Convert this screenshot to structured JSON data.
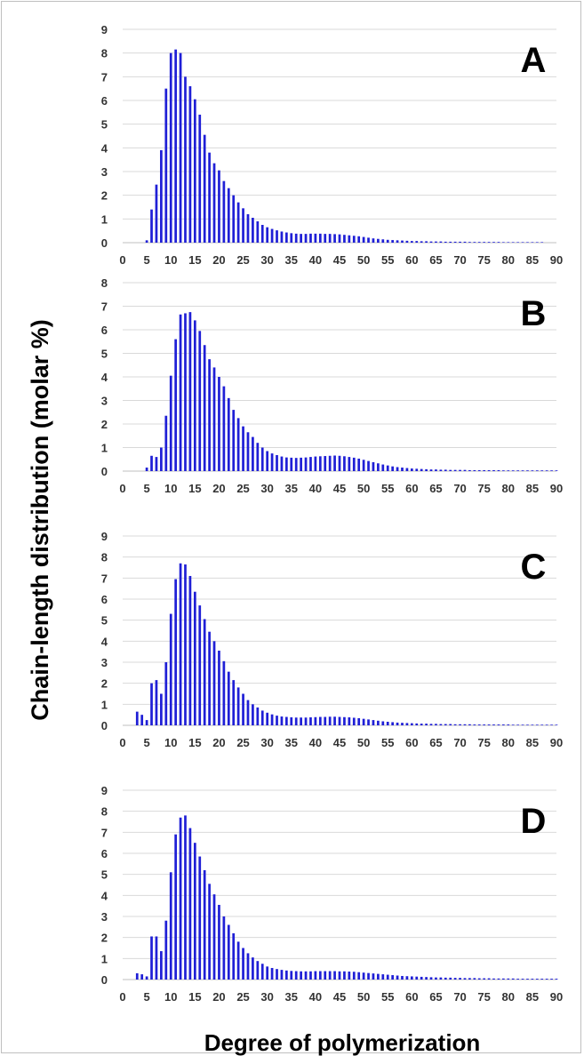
{
  "figure": {
    "ylabel": "Chain-length distribution  (molar %)",
    "xlabel": "Degree of polymerization"
  },
  "style": {
    "bar_color": "#1f1fd6",
    "grid_color": "#d9d9d9",
    "tick_color": "#333333"
  },
  "chart_data": [
    {
      "type": "bar",
      "panel_label": "A",
      "xlim": [
        0,
        90
      ],
      "ylim": [
        0,
        9
      ],
      "xticks": [
        0,
        5,
        10,
        15,
        20,
        25,
        30,
        35,
        40,
        45,
        50,
        55,
        60,
        65,
        70,
        75,
        80,
        85,
        90
      ],
      "yticks": [
        0,
        1,
        2,
        3,
        4,
        5,
        6,
        7,
        8,
        9
      ],
      "grid": true,
      "x": [
        5,
        6,
        7,
        8,
        9,
        10,
        11,
        12,
        13,
        14,
        15,
        16,
        17,
        18,
        19,
        20,
        21,
        22,
        23,
        24,
        25,
        26,
        27,
        28,
        29,
        30,
        31,
        32,
        33,
        34,
        35,
        36,
        37,
        38,
        39,
        40,
        41,
        42,
        43,
        44,
        45,
        46,
        47,
        48,
        49,
        50,
        51,
        52,
        53,
        54,
        55,
        56,
        57,
        58,
        59,
        60,
        61,
        62,
        63,
        64,
        65,
        66,
        67,
        68,
        69,
        70,
        71,
        72,
        73,
        74,
        75,
        76,
        77,
        78,
        79,
        80,
        81,
        82,
        83,
        84,
        85,
        86,
        87
      ],
      "values": [
        0.1,
        1.4,
        2.45,
        3.9,
        6.5,
        8.0,
        8.15,
        8.0,
        7.0,
        6.6,
        6.05,
        5.4,
        4.55,
        3.8,
        3.35,
        3.05,
        2.6,
        2.3,
        2.0,
        1.7,
        1.45,
        1.2,
        1.05,
        0.9,
        0.75,
        0.65,
        0.58,
        0.52,
        0.47,
        0.43,
        0.4,
        0.38,
        0.37,
        0.37,
        0.38,
        0.38,
        0.38,
        0.37,
        0.37,
        0.36,
        0.35,
        0.33,
        0.31,
        0.29,
        0.27,
        0.24,
        0.21,
        0.18,
        0.16,
        0.14,
        0.12,
        0.11,
        0.1,
        0.09,
        0.08,
        0.07,
        0.07,
        0.06,
        0.06,
        0.05,
        0.05,
        0.05,
        0.04,
        0.04,
        0.04,
        0.04,
        0.04,
        0.03,
        0.03,
        0.03,
        0.03,
        0.03,
        0.03,
        0.03,
        0.02,
        0.02,
        0.02,
        0.02,
        0.02,
        0.02,
        0.02,
        0.02,
        0.02
      ]
    },
    {
      "type": "bar",
      "panel_label": "B",
      "xlim": [
        0,
        90
      ],
      "ylim": [
        0,
        8
      ],
      "xticks": [
        0,
        5,
        10,
        15,
        20,
        25,
        30,
        35,
        40,
        45,
        50,
        55,
        60,
        65,
        70,
        75,
        80,
        85,
        90
      ],
      "yticks": [
        0,
        1,
        2,
        3,
        4,
        5,
        6,
        7,
        8
      ],
      "grid": true,
      "x": [
        5,
        6,
        7,
        8,
        9,
        10,
        11,
        12,
        13,
        14,
        15,
        16,
        17,
        18,
        19,
        20,
        21,
        22,
        23,
        24,
        25,
        26,
        27,
        28,
        29,
        30,
        31,
        32,
        33,
        34,
        35,
        36,
        37,
        38,
        39,
        40,
        41,
        42,
        43,
        44,
        45,
        46,
        47,
        48,
        49,
        50,
        51,
        52,
        53,
        54,
        55,
        56,
        57,
        58,
        59,
        60,
        61,
        62,
        63,
        64,
        65,
        66,
        67,
        68,
        69,
        70,
        71,
        72,
        73,
        74,
        75,
        76,
        77,
        78,
        79,
        80,
        81,
        82,
        83,
        84,
        85,
        86,
        87,
        88,
        89,
        90
      ],
      "values": [
        0.15,
        0.65,
        0.6,
        1.0,
        2.35,
        4.05,
        5.6,
        6.65,
        6.7,
        6.75,
        6.4,
        5.95,
        5.35,
        4.75,
        4.4,
        4.0,
        3.6,
        3.1,
        2.6,
        2.25,
        1.9,
        1.65,
        1.45,
        1.2,
        1.0,
        0.85,
        0.75,
        0.68,
        0.62,
        0.58,
        0.57,
        0.56,
        0.57,
        0.58,
        0.6,
        0.62,
        0.63,
        0.64,
        0.65,
        0.66,
        0.65,
        0.63,
        0.6,
        0.57,
        0.53,
        0.48,
        0.43,
        0.38,
        0.33,
        0.28,
        0.24,
        0.2,
        0.17,
        0.15,
        0.13,
        0.11,
        0.1,
        0.09,
        0.08,
        0.07,
        0.07,
        0.06,
        0.06,
        0.05,
        0.05,
        0.05,
        0.05,
        0.04,
        0.04,
        0.04,
        0.04,
        0.04,
        0.04,
        0.04,
        0.03,
        0.03,
        0.03,
        0.03,
        0.03,
        0.03,
        0.03,
        0.03,
        0.03,
        0.03,
        0.03,
        0.03
      ]
    },
    {
      "type": "bar",
      "panel_label": "C",
      "xlim": [
        0,
        90
      ],
      "ylim": [
        0,
        9
      ],
      "xticks": [
        0,
        5,
        10,
        15,
        20,
        25,
        30,
        35,
        40,
        45,
        50,
        55,
        60,
        65,
        70,
        75,
        80,
        85,
        90
      ],
      "yticks": [
        0,
        1,
        2,
        3,
        4,
        5,
        6,
        7,
        8,
        9
      ],
      "grid": true,
      "x": [
        3,
        4,
        5,
        6,
        7,
        8,
        9,
        10,
        11,
        12,
        13,
        14,
        15,
        16,
        17,
        18,
        19,
        20,
        21,
        22,
        23,
        24,
        25,
        26,
        27,
        28,
        29,
        30,
        31,
        32,
        33,
        34,
        35,
        36,
        37,
        38,
        39,
        40,
        41,
        42,
        43,
        44,
        45,
        46,
        47,
        48,
        49,
        50,
        51,
        52,
        53,
        54,
        55,
        56,
        57,
        58,
        59,
        60,
        61,
        62,
        63,
        64,
        65,
        66,
        67,
        68,
        69,
        70,
        71,
        72,
        73,
        74,
        75,
        76,
        77,
        78,
        79,
        80,
        81,
        82,
        83,
        84,
        85,
        86,
        87,
        88,
        89,
        90
      ],
      "values": [
        0.65,
        0.5,
        0.25,
        2.0,
        2.15,
        1.5,
        3.0,
        5.3,
        6.95,
        7.7,
        7.65,
        7.1,
        6.35,
        5.7,
        5.05,
        4.45,
        4.0,
        3.55,
        3.05,
        2.55,
        2.15,
        1.8,
        1.5,
        1.2,
        1.0,
        0.85,
        0.7,
        0.6,
        0.52,
        0.46,
        0.42,
        0.4,
        0.38,
        0.37,
        0.37,
        0.37,
        0.38,
        0.39,
        0.4,
        0.4,
        0.41,
        0.41,
        0.4,
        0.39,
        0.38,
        0.36,
        0.34,
        0.31,
        0.28,
        0.25,
        0.22,
        0.19,
        0.17,
        0.15,
        0.13,
        0.12,
        0.11,
        0.1,
        0.09,
        0.08,
        0.08,
        0.07,
        0.07,
        0.06,
        0.06,
        0.06,
        0.05,
        0.05,
        0.05,
        0.05,
        0.04,
        0.04,
        0.04,
        0.04,
        0.04,
        0.04,
        0.04,
        0.04,
        0.03,
        0.03,
        0.03,
        0.03,
        0.03,
        0.03,
        0.03,
        0.03,
        0.03,
        0.03
      ]
    },
    {
      "type": "bar",
      "panel_label": "D",
      "xlim": [
        0,
        90
      ],
      "ylim": [
        0,
        9
      ],
      "xticks": [
        0,
        5,
        10,
        15,
        20,
        25,
        30,
        35,
        40,
        45,
        50,
        55,
        60,
        65,
        70,
        75,
        80,
        85,
        90
      ],
      "yticks": [
        0,
        1,
        2,
        3,
        4,
        5,
        6,
        7,
        8,
        9
      ],
      "grid": true,
      "x": [
        3,
        4,
        5,
        6,
        7,
        8,
        9,
        10,
        11,
        12,
        13,
        14,
        15,
        16,
        17,
        18,
        19,
        20,
        21,
        22,
        23,
        24,
        25,
        26,
        27,
        28,
        29,
        30,
        31,
        32,
        33,
        34,
        35,
        36,
        37,
        38,
        39,
        40,
        41,
        42,
        43,
        44,
        45,
        46,
        47,
        48,
        49,
        50,
        51,
        52,
        53,
        54,
        55,
        56,
        57,
        58,
        59,
        60,
        61,
        62,
        63,
        64,
        65,
        66,
        67,
        68,
        69,
        70,
        71,
        72,
        73,
        74,
        75,
        76,
        77,
        78,
        79,
        80,
        81,
        82,
        83,
        84,
        85,
        86,
        87,
        88,
        89,
        90
      ],
      "values": [
        0.3,
        0.25,
        0.15,
        2.05,
        2.05,
        1.35,
        2.8,
        5.1,
        6.9,
        7.7,
        7.8,
        7.2,
        6.5,
        5.85,
        5.2,
        4.55,
        4.05,
        3.55,
        3.0,
        2.6,
        2.2,
        1.8,
        1.5,
        1.25,
        1.05,
        0.88,
        0.75,
        0.62,
        0.55,
        0.5,
        0.46,
        0.43,
        0.41,
        0.4,
        0.39,
        0.39,
        0.39,
        0.4,
        0.4,
        0.4,
        0.4,
        0.4,
        0.39,
        0.39,
        0.38,
        0.37,
        0.35,
        0.33,
        0.31,
        0.29,
        0.27,
        0.25,
        0.23,
        0.21,
        0.19,
        0.17,
        0.16,
        0.15,
        0.14,
        0.13,
        0.12,
        0.11,
        0.1,
        0.1,
        0.09,
        0.09,
        0.08,
        0.08,
        0.07,
        0.07,
        0.07,
        0.06,
        0.06,
        0.06,
        0.05,
        0.05,
        0.05,
        0.05,
        0.05,
        0.04,
        0.04,
        0.04,
        0.04,
        0.04,
        0.04,
        0.04,
        0.04,
        0.04
      ]
    }
  ]
}
